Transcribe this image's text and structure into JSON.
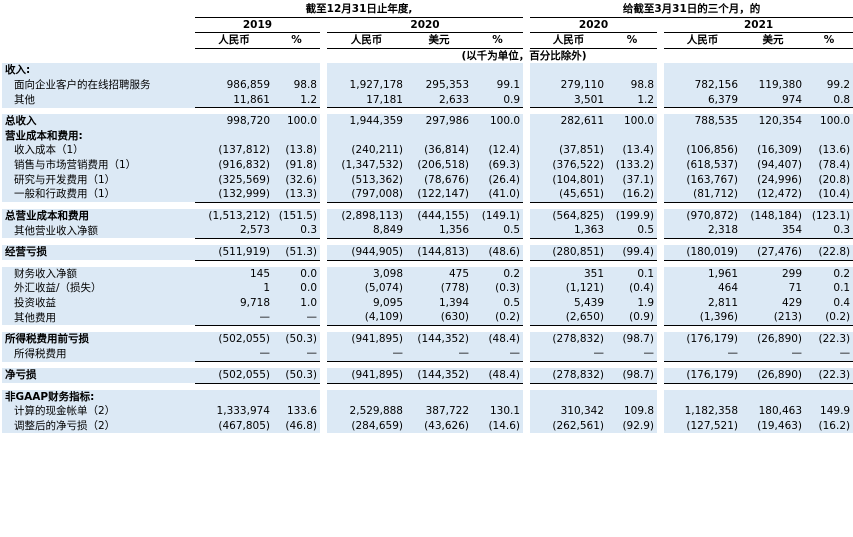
{
  "header": {
    "period_year": "截至12月31日止年度,",
    "period_quarter": "给截至3月31日的三个月，的",
    "years": [
      "2019",
      "2020",
      "2020",
      "2021"
    ],
    "col_labels": [
      "人民币",
      "%",
      "人民币",
      "美元",
      "%",
      "人民币",
      "%",
      "人民币",
      "美元",
      "%"
    ],
    "unit_note": "(以千为单位，百分比除外)"
  },
  "rows": [
    {
      "label": "收入:",
      "type": "section"
    },
    {
      "label": "面向企业客户的在线招聘服务",
      "type": "item",
      "v": [
        "986,859",
        "98.8",
        "1,927,178",
        "295,353",
        "99.1",
        "279,110",
        "98.8",
        "782,156",
        "119,380",
        "99.2"
      ]
    },
    {
      "label": "其他",
      "type": "item",
      "v": [
        "11,861",
        "1.2",
        "17,181",
        "2,633",
        "0.9",
        "3,501",
        "1.2",
        "6,379",
        "974",
        "0.8"
      ],
      "under": true
    },
    {
      "type": "spacer"
    },
    {
      "label": "总收入",
      "type": "total",
      "v": [
        "998,720",
        "100.0",
        "1,944,359",
        "297,986",
        "100.0",
        "282,611",
        "100.0",
        "788,535",
        "120,354",
        "100.0"
      ]
    },
    {
      "label": "营业成本和费用:",
      "type": "section"
    },
    {
      "label": "收入成本（1）",
      "type": "item",
      "v": [
        "(137,812)",
        "(13.8)",
        "(240,211)",
        "(36,814)",
        "(12.4)",
        "(37,851)",
        "(13.4)",
        "(106,856)",
        "(16,309)",
        "(13.6)"
      ]
    },
    {
      "label": "销售与市场营销费用（1）",
      "type": "item",
      "v": [
        "(916,832)",
        "(91.8)",
        "(1,347,532)",
        "(206,518)",
        "(69.3)",
        "(376,522)",
        "(133.2)",
        "(618,537)",
        "(94,407)",
        "(78.4)"
      ]
    },
    {
      "label": "研究与开发费用（1）",
      "type": "item",
      "v": [
        "(325,569)",
        "(32.6)",
        "(513,362)",
        "(78,676)",
        "(26.4)",
        "(104,801)",
        "(37.1)",
        "(163,767)",
        "(24,996)",
        "(20.8)"
      ]
    },
    {
      "label": "一般和行政费用（1）",
      "type": "item",
      "v": [
        "(132,999)",
        "(13.3)",
        "(797,008)",
        "(122,147)",
        "(41.0)",
        "(45,651)",
        "(16.2)",
        "(81,712)",
        "(12,472)",
        "(10.4)"
      ],
      "under": true
    },
    {
      "type": "spacer"
    },
    {
      "label": "总营业成本和费用",
      "type": "total",
      "v": [
        "(1,513,212)",
        "(151.5)",
        "(2,898,113)",
        "(444,155)",
        "(149.1)",
        "(564,825)",
        "(199.9)",
        "(970,872)",
        "(148,184)",
        "(123.1)"
      ]
    },
    {
      "label": "其他营业收入净额",
      "type": "item",
      "v": [
        "2,573",
        "0.3",
        "8,849",
        "1,356",
        "0.5",
        "1,363",
        "0.5",
        "2,318",
        "354",
        "0.3"
      ],
      "under": true
    },
    {
      "type": "spacer"
    },
    {
      "label": "经营亏损",
      "type": "total",
      "v": [
        "(511,919)",
        "(51.3)",
        "(944,905)",
        "(144,813)",
        "(48.6)",
        "(280,851)",
        "(99.4)",
        "(180,019)",
        "(27,476)",
        "(22.8)"
      ],
      "under": true
    },
    {
      "type": "spacer"
    },
    {
      "label": "财务收入净额",
      "type": "item",
      "v": [
        "145",
        "0.0",
        "3,098",
        "475",
        "0.2",
        "351",
        "0.1",
        "1,961",
        "299",
        "0.2"
      ]
    },
    {
      "label": "外汇收益/（损失）",
      "type": "item",
      "v": [
        "1",
        "0.0",
        "(5,074)",
        "(778)",
        "(0.3)",
        "(1,121)",
        "(0.4)",
        "464",
        "71",
        "0.1"
      ]
    },
    {
      "label": "投资收益",
      "type": "item",
      "v": [
        "9,718",
        "1.0",
        "9,095",
        "1,394",
        "0.5",
        "5,439",
        "1.9",
        "2,811",
        "429",
        "0.4"
      ]
    },
    {
      "label": "其他费用",
      "type": "item",
      "v": [
        "—",
        "—",
        "(4,109)",
        "(630)",
        "(0.2)",
        "(2,650)",
        "(0.9)",
        "(1,396)",
        "(213)",
        "(0.2)"
      ],
      "under": true
    },
    {
      "type": "spacer"
    },
    {
      "label": "所得税费用前亏损",
      "type": "total",
      "v": [
        "(502,055)",
        "(50.3)",
        "(941,895)",
        "(144,352)",
        "(48.4)",
        "(278,832)",
        "(98.7)",
        "(176,179)",
        "(26,890)",
        "(22.3)"
      ]
    },
    {
      "label": "所得税费用",
      "type": "item",
      "v": [
        "—",
        "—",
        "—",
        "—",
        "—",
        "—",
        "—",
        "—",
        "—",
        "—"
      ],
      "under": true
    },
    {
      "type": "spacer"
    },
    {
      "label": "净亏损",
      "type": "total",
      "v": [
        "(502,055)",
        "(50.3)",
        "(941,895)",
        "(144,352)",
        "(48.4)",
        "(278,832)",
        "(98.7)",
        "(176,179)",
        "(26,890)",
        "(22.3)"
      ],
      "under": true
    },
    {
      "type": "spacer"
    },
    {
      "label": "非GAAP财务指标:",
      "type": "section"
    },
    {
      "label": "计算的现金帐单（2）",
      "type": "item",
      "v": [
        "1,333,974",
        "133.6",
        "2,529,888",
        "387,722",
        "130.1",
        "310,342",
        "109.8",
        "1,182,358",
        "180,463",
        "149.9"
      ]
    },
    {
      "label": "调整后的净亏损（2）",
      "type": "item",
      "v": [
        "(467,805)",
        "(46.8)",
        "(284,659)",
        "(43,626)",
        "(14.6)",
        "(262,561)",
        "(92.9)",
        "(127,521)",
        "(19,463)",
        "(16.2)"
      ]
    }
  ]
}
